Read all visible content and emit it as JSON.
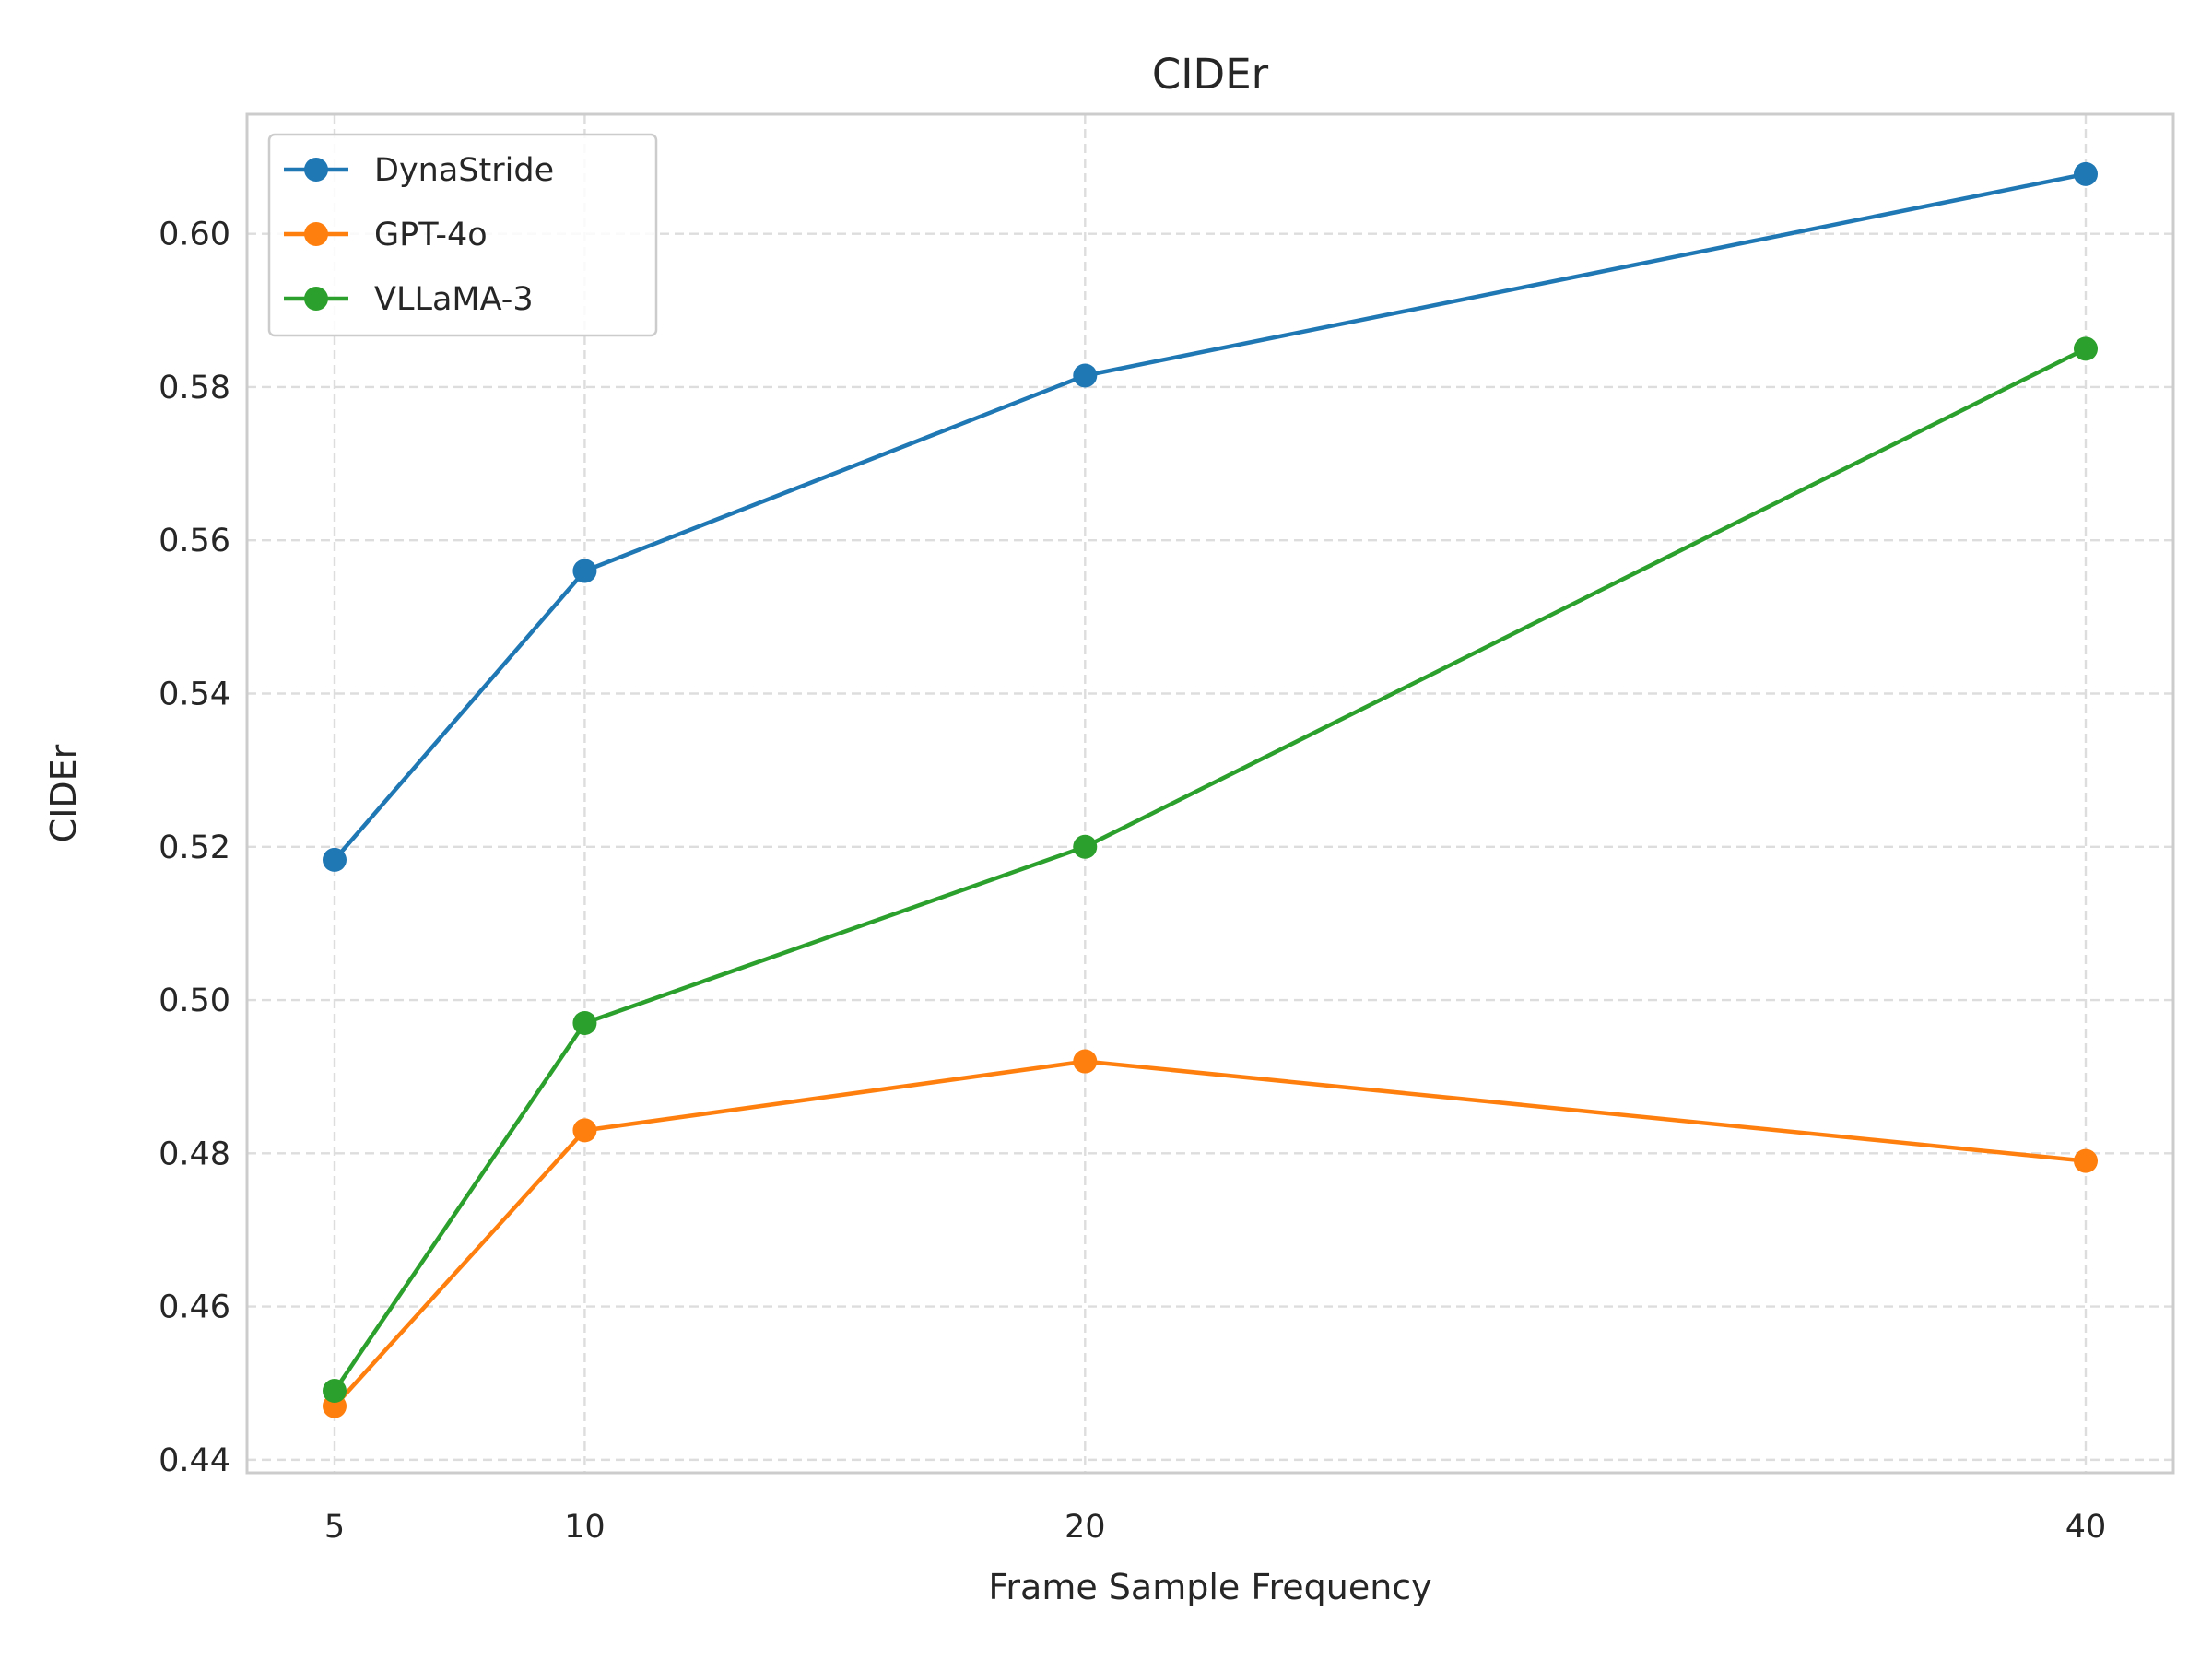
{
  "chart_data": {
    "type": "line",
    "title": "CIDEr",
    "xlabel": "Frame Sample Frequency",
    "ylabel": "CIDEr",
    "x": [
      5,
      10,
      20,
      40
    ],
    "xticks": [
      "5",
      "10",
      "20",
      "40"
    ],
    "yticks": [
      "0.44",
      "0.46",
      "0.48",
      "0.50",
      "0.52",
      "0.54",
      "0.56",
      "0.58",
      "0.60"
    ],
    "xlim": [
      3.25,
      41.75
    ],
    "ylim": [
      0.4383,
      0.6156
    ],
    "grid": true,
    "legend_position": "top-left",
    "series": [
      {
        "name": "DynaStride",
        "color": "#1f77b4",
        "values": [
          0.5183,
          0.556,
          0.5815,
          0.6078
        ]
      },
      {
        "name": "GPT-4o",
        "color": "#ff7f0e",
        "values": [
          0.447,
          0.483,
          0.492,
          0.479
        ]
      },
      {
        "name": "VLLaMA-3",
        "color": "#2ca02c",
        "values": [
          0.449,
          0.497,
          0.52,
          0.585
        ]
      }
    ]
  }
}
